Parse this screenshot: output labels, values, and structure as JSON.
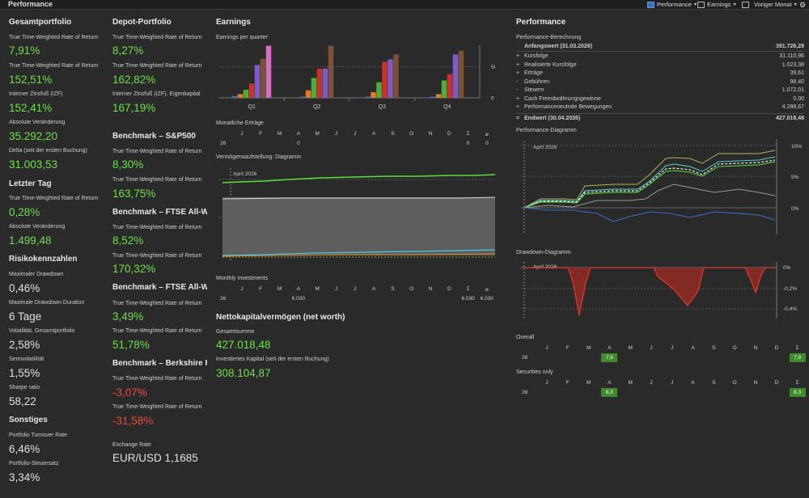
{
  "app": {
    "title": "Performance"
  },
  "toolbar": {
    "performance": "Performance",
    "earnings": "Earnings",
    "period": "Voriger Monat"
  },
  "col1": {
    "gesamt_title": "Gesamtportfolio",
    "items": [
      {
        "label": "True Time-Weighted Rate of Return",
        "value": "7,91%"
      },
      {
        "label": "True Time-Weighted Rate of Return",
        "value": "152,51%"
      },
      {
        "label": "Interner Zinsfuß (IZF)",
        "value": "152,41%"
      },
      {
        "label": "Absolute Veränderung",
        "value": "35.292,20"
      },
      {
        "label": "Delta (seit der ersten Buchung)",
        "value": "31.003,53"
      }
    ],
    "letzter_title": "Letzter Tag",
    "letzter": [
      {
        "label": "True Time-Weighted Rate of Return",
        "value": "0,28%"
      },
      {
        "label": "Absolute Veränderung",
        "value": "1.499,48"
      }
    ],
    "risiko_title": "Risikokennzahlen",
    "risiko": [
      {
        "label": "Maximaler Drawdown",
        "value": "0,46%"
      },
      {
        "label": "Maximale Drawdown Duration",
        "value": "6 Tage"
      },
      {
        "label": "Volatilität, Gesamtportfolio",
        "value": "2,58%"
      },
      {
        "label": "Semivolatilität",
        "value": "1,55%"
      },
      {
        "label": "Sharpe ratio",
        "value": "58,22"
      }
    ],
    "sonstiges_title": "Sonstiges",
    "sonstiges": [
      {
        "label": "Portfolio Turnover Rate",
        "value": "6,46%"
      },
      {
        "label": "Portfolio-Steuersatz",
        "value": "3,34%"
      }
    ]
  },
  "col2": {
    "depot_title": "Depot-Portfolio",
    "depot": [
      {
        "label": "True Time-Weighted Rate of Return",
        "value": "8,27%"
      },
      {
        "label": "True Time-Weighted Rate of Return",
        "value": "162,82%"
      },
      {
        "label": "Interner Zinsfuß (IZF), Eigenkapital",
        "value": "167,19%"
      }
    ],
    "b1_title": "Benchmark – S&P500",
    "b1": [
      {
        "label": "True Time-Weighted Rate of Return",
        "value": "8,30%"
      },
      {
        "label": "True Time-Weighted Rate of Return",
        "value": "163,75%"
      }
    ],
    "b2_title": "Benchmark – FTSE All-Wo",
    "b2": [
      {
        "label": "True Time-Weighted Rate of Return",
        "value": "8,52%"
      },
      {
        "label": "True Time-Weighted Rate of Return",
        "value": "170,32%"
      }
    ],
    "b3_title": "Benchmark – FTSE All-Wo",
    "b3": [
      {
        "label": "True Time-Weighted Rate of Return",
        "value": "3,49%"
      },
      {
        "label": "True Time-Weighted Rate of Return",
        "value": "51,78%"
      }
    ],
    "b4_title": "Benchmark – Berkshire H",
    "b4": [
      {
        "label": "True Time-Weighted Rate of Return",
        "value": "-3,07%"
      },
      {
        "label": "True Time-Weighted Rate of Return",
        "value": "-31,58%"
      }
    ],
    "fx_label": "Exchange Rate",
    "fx_value": "EUR/USD 1,1685"
  },
  "earnings": {
    "title": "Earnings",
    "subtitle": "Earnings per quarter",
    "monthly_title": "Monatliche Erträge",
    "year": "26",
    "months": [
      "J",
      "F",
      "M",
      "A",
      "M",
      "J",
      "J",
      "A",
      "S",
      "O",
      "N",
      "D",
      "Σ",
      "⌀"
    ],
    "monthly_vals": [
      "",
      "",
      "",
      "0",
      "",
      "",
      "",
      "",
      "",
      "",
      "",
      "",
      "0",
      "0"
    ],
    "verm_title": "Vermögensaufstellung: Diagramm",
    "april_label": "April 2026",
    "mi_title": "Monthly Investments",
    "mi_vals": [
      "",
      "",
      "",
      "6.030",
      "",
      "",
      "",
      "",
      "",
      "",
      "",
      "",
      "6.030",
      "6.030"
    ],
    "nw_title": "Nettokapitalvermögen (net worth)",
    "nw_sum_label": "Gesamtsumme",
    "nw_sum": "427.018,48",
    "nw_inv_label": "Investiertes Kapital (seit der ersten Buchung)",
    "nw_inv": "308.104,87"
  },
  "chart_data": [
    {
      "type": "bar",
      "title": "Earnings per quarter",
      "categories": [
        "Q1",
        "Q2",
        "Q3",
        "Q4"
      ],
      "yticks": [
        0,
        500
      ],
      "ylim": [
        0,
        900
      ],
      "colors": [
        "#3e6fbf",
        "#e07b2a",
        "#4caf3a",
        "#c6322c",
        "#7d5cc8",
        "#7a5238",
        "#d46fc0"
      ],
      "series_by_category": [
        [
          30,
          60,
          130,
          230,
          530,
          630,
          840
        ],
        [
          20,
          120,
          320,
          470,
          470,
          840
        ],
        [
          20,
          90,
          250,
          580,
          620,
          700
        ],
        [
          20,
          60,
          280,
          380,
          700,
          760
        ]
      ]
    },
    {
      "type": "line",
      "title": "Performance-Diagramm",
      "yticks": [
        "10%",
        "5%",
        "0%"
      ],
      "ylim": [
        -5,
        11
      ]
    },
    {
      "type": "area",
      "title": "Drawdown-Diagramm",
      "yticks": [
        "0%",
        "-0,2%",
        "-0,4%"
      ],
      "ylim": [
        -0.48,
        0.04
      ]
    }
  ],
  "perf": {
    "title": "Performance",
    "calc_title": "Performance-Berechnung",
    "start_label": "Anfangswert (31.03.2026)",
    "start_value": "391.726,28",
    "rows": [
      {
        "sign": "+",
        "label": "Kursfolge",
        "value": "31.110,96"
      },
      {
        "sign": "+",
        "label": "Realisierte Kursfolge",
        "value": "1.023,38"
      },
      {
        "sign": "+",
        "label": "Erträge",
        "value": "39,61"
      },
      {
        "sign": "-",
        "label": "Gebühren",
        "value": "98,40"
      },
      {
        "sign": "-",
        "label": "Steuern",
        "value": "1.072,01"
      },
      {
        "sign": "+",
        "label": "Cash Fremdwährungsgewinne",
        "value": "0,00"
      },
      {
        "sign": "+",
        "label": "Performanceneutrale Bewegungen",
        "value": "4.288,67"
      }
    ],
    "end_sign": "=",
    "end_label": "Endwert (30.04.2026)",
    "end_value": "427.018,48",
    "diag_title": "Performance-Diagramm",
    "april_label": "April 2026",
    "dd_title": "Drawdown-Diagramm",
    "overall_title": "Overall",
    "securities_title": "Securities only",
    "year": "26",
    "months": [
      "J",
      "F",
      "M",
      "A",
      "M",
      "J",
      "J",
      "A",
      "S",
      "O",
      "N",
      "D",
      "Σ"
    ],
    "overall_april": "7,9",
    "overall_sum": "7,9",
    "sec_april": "8,3",
    "sec_sum": "8,3"
  }
}
